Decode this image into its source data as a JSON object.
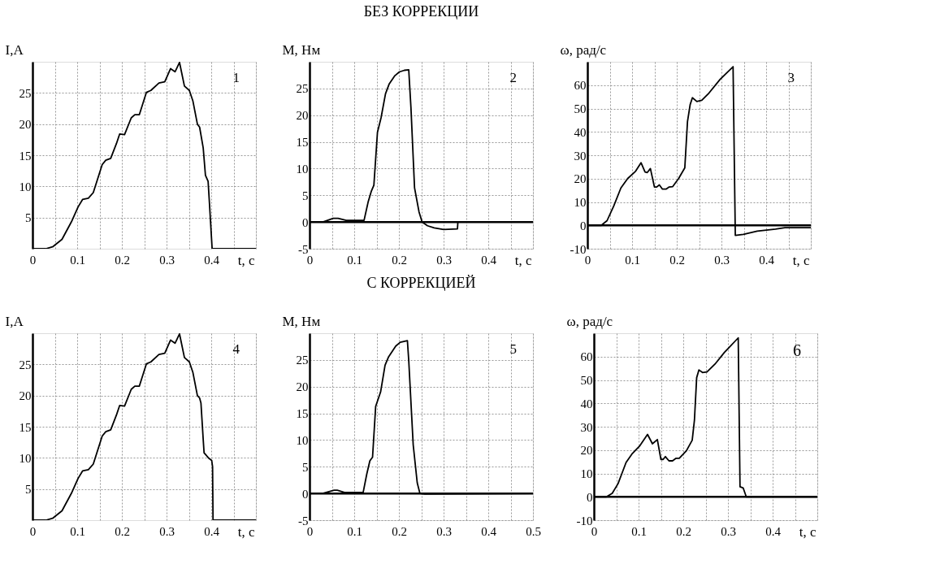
{
  "chart_data": [
    {
      "type": "line",
      "xlabel": "t, c",
      "ylabel": "I,A",
      "annotations": [
        "1"
      ],
      "grid": true,
      "xlim": [
        0,
        0.5
      ],
      "ylim": [
        0,
        30
      ],
      "xticks": [
        0,
        {
          "value": 0.05,
          "label": null
        },
        0.1,
        {
          "value": 0.15,
          "label": null
        },
        0.2,
        {
          "value": 0.25,
          "label": null
        },
        0.3,
        {
          "value": 0.35,
          "label": null
        },
        0.4,
        {
          "value": 0.45,
          "label": null
        },
        {
          "value": 0.5,
          "label": null
        }
      ],
      "yticks": [
        5,
        10,
        15,
        20,
        25
      ],
      "series": [
        {
          "color": "#000000",
          "x": [
            0,
            0.03,
            0.045,
            0.066,
            0.087,
            0.102,
            0.112,
            0.125,
            0.136,
            0.156,
            0.164,
            0.175,
            0.188,
            0.195,
            0.206,
            0.221,
            0.229,
            0.239,
            0.255,
            0.265,
            0.283,
            0.296,
            0.309,
            0.319,
            0.329,
            0.34,
            0.351,
            0.359,
            0.369,
            0.374,
            0.382,
            0.387,
            0.393,
            0.396,
            0.402,
            0.5
          ],
          "values": [
            0,
            0,
            0.3,
            1.5,
            4.3,
            6.7,
            7.9,
            8.1,
            9,
            13.5,
            14.2,
            14.5,
            16.9,
            18.4,
            18.3,
            21,
            21.5,
            21.5,
            25.1,
            25.4,
            26.6,
            26.8,
            28.9,
            28.4,
            29.9,
            26.1,
            25.4,
            23.7,
            20,
            19.5,
            16.2,
            11.8,
            10.8,
            7.3,
            0,
            0
          ]
        }
      ]
    },
    {
      "type": "line",
      "title": "БЕЗ КОРРЕКЦИИ",
      "xlabel": "t, c",
      "ylabel": "M, Нм",
      "annotations": [
        "2"
      ],
      "grid": true,
      "xlim": [
        0,
        0.5
      ],
      "ylim": [
        -5,
        30
      ],
      "xticks": [
        0,
        {
          "value": 0.05,
          "label": null
        },
        0.1,
        {
          "value": 0.15,
          "label": null
        },
        0.2,
        {
          "value": 0.25,
          "label": null
        },
        0.3,
        {
          "value": 0.35,
          "label": null
        },
        0.4,
        {
          "value": 0.45,
          "label": null
        },
        {
          "value": 0.5,
          "label": null
        }
      ],
      "yticks": [
        -5,
        0,
        5,
        10,
        15,
        20,
        25
      ],
      "ref_lines": [
        {
          "axis": "y",
          "value": 0
        }
      ],
      "series": [
        {
          "color": "#000000",
          "x": [
            0,
            0.03,
            0.053,
            0.064,
            0.082,
            0.122,
            0.131,
            0.138,
            0.144,
            0.152,
            0.16,
            0.17,
            0.178,
            0.191,
            0.201,
            0.212,
            0.222,
            0.227,
            0.235,
            0.245,
            0.252,
            0.264,
            0.279,
            0.3,
            0.331,
            0.332,
            0.5
          ],
          "values": [
            0,
            0,
            0.7,
            0.7,
            0.3,
            0.3,
            3.7,
            5.7,
            6.9,
            16.8,
            19.5,
            24,
            25.8,
            27.4,
            28.1,
            28.4,
            28.5,
            21.3,
            6.4,
            1.9,
            0,
            -0.7,
            -1.1,
            -1.4,
            -1.3,
            0,
            0
          ]
        }
      ]
    },
    {
      "type": "line",
      "xlabel": "t, c",
      "ylabel": "ω, рад/с",
      "annotations": [
        "3"
      ],
      "grid": true,
      "xlim": [
        0,
        0.5
      ],
      "ylim": [
        -10,
        70
      ],
      "xticks": [
        0,
        {
          "value": 0.05,
          "label": null
        },
        0.1,
        {
          "value": 0.15,
          "label": null
        },
        0.2,
        {
          "value": 0.25,
          "label": null
        },
        0.3,
        {
          "value": 0.35,
          "label": null
        },
        0.4,
        {
          "value": 0.45,
          "label": null
        },
        {
          "value": 0.5,
          "label": null
        }
      ],
      "yticks": [
        -10,
        0,
        10,
        20,
        30,
        40,
        50,
        60
      ],
      "ref_lines": [
        {
          "axis": "y",
          "value": 0
        }
      ],
      "series": [
        {
          "color": "#000000",
          "x": [
            0,
            0.031,
            0.044,
            0.059,
            0.075,
            0.09,
            0.108,
            0.12,
            0.129,
            0.134,
            0.141,
            0.15,
            0.155,
            0.161,
            0.168,
            0.176,
            0.183,
            0.191,
            0.204,
            0.218,
            0.224,
            0.23,
            0.235,
            0.245,
            0.256,
            0.272,
            0.297,
            0.326,
            0.331,
            0.349,
            0.38,
            0.421,
            0.442,
            0.5
          ],
          "values": [
            0,
            0,
            2,
            8.3,
            16,
            20,
            23.2,
            26.8,
            22.8,
            22.6,
            24.3,
            16.4,
            16.4,
            17.3,
            15.5,
            15.5,
            16.4,
            16.6,
            20,
            24.6,
            44.4,
            51.7,
            54.6,
            53,
            53.5,
            56.6,
            62.5,
            67.9,
            -4.3,
            -3.9,
            -2.5,
            -1.6,
            -1,
            -1
          ]
        }
      ]
    },
    {
      "type": "line",
      "xlabel": "t, c",
      "ylabel": "I,A",
      "annotations": [
        "4"
      ],
      "grid": true,
      "xlim": [
        0,
        0.5
      ],
      "ylim": [
        0,
        30
      ],
      "xticks": [
        0,
        {
          "value": 0.05,
          "label": null
        },
        0.1,
        {
          "value": 0.15,
          "label": null
        },
        0.2,
        {
          "value": 0.25,
          "label": null
        },
        0.3,
        {
          "value": 0.35,
          "label": null
        },
        0.4,
        {
          "value": 0.45,
          "label": null
        },
        {
          "value": 0.5,
          "label": null
        }
      ],
      "yticks": [
        5,
        10,
        15,
        20,
        25
      ],
      "series": [
        {
          "color": "#000000",
          "x": [
            0,
            0.03,
            0.045,
            0.066,
            0.087,
            0.102,
            0.112,
            0.125,
            0.136,
            0.156,
            0.164,
            0.175,
            0.188,
            0.195,
            0.206,
            0.221,
            0.229,
            0.239,
            0.255,
            0.265,
            0.283,
            0.296,
            0.309,
            0.319,
            0.329,
            0.34,
            0.351,
            0.359,
            0.369,
            0.374,
            0.377,
            0.382,
            0.384,
            0.395,
            0.401,
            0.403,
            0.404,
            0.5
          ],
          "values": [
            0,
            0,
            0.3,
            1.5,
            4.3,
            6.7,
            7.9,
            8.1,
            9,
            13.5,
            14.2,
            14.5,
            16.9,
            18.4,
            18.3,
            21,
            21.5,
            21.5,
            25.1,
            25.4,
            26.6,
            26.8,
            28.9,
            28.4,
            29.9,
            26.1,
            25.4,
            23.7,
            20,
            19.6,
            18.8,
            13,
            10.8,
            9.9,
            9.6,
            8.6,
            0,
            0
          ]
        }
      ]
    },
    {
      "type": "line",
      "title": "С КОРРЕКЦИЕЙ",
      "ylabel": "M, Нм",
      "annotations": [
        "5"
      ],
      "grid": true,
      "xlim": [
        0,
        0.5
      ],
      "ylim": [
        -5,
        30
      ],
      "xticks": [
        0,
        {
          "value": 0.05,
          "label": null
        },
        0.1,
        {
          "value": 0.15,
          "label": null
        },
        0.2,
        {
          "value": 0.25,
          "label": null
        },
        0.3,
        {
          "value": 0.35,
          "label": null
        },
        0.4,
        {
          "value": 0.45,
          "label": null
        },
        0.5
      ],
      "yticks": [
        -5,
        0,
        5,
        10,
        15,
        20,
        25
      ],
      "ref_lines": [
        {
          "axis": "y",
          "value": 0
        }
      ],
      "series": [
        {
          "color": "#000000",
          "x": [
            0,
            0.029,
            0.055,
            0.062,
            0.078,
            0.12,
            0.128,
            0.135,
            0.141,
            0.148,
            0.159,
            0.169,
            0.177,
            0.193,
            0.203,
            0.219,
            0.222,
            0.232,
            0.241,
            0.247,
            0.258,
            0.5
          ],
          "values": [
            0,
            0,
            0.6,
            0.6,
            0.2,
            0.2,
            3.6,
            6.1,
            6.8,
            16.3,
            19,
            24,
            25.6,
            27.6,
            28.3,
            28.6,
            24.9,
            9.1,
            2,
            0,
            -0.1,
            0
          ]
        }
      ]
    },
    {
      "type": "line",
      "xlabel": "t, c",
      "ylabel": "ω, рад/с",
      "annotations": [
        "6"
      ],
      "grid": true,
      "xlim": [
        0,
        0.5
      ],
      "ylim": [
        -10,
        70
      ],
      "xticks": [
        0,
        {
          "value": 0.05,
          "label": null
        },
        0.1,
        {
          "value": 0.15,
          "label": null
        },
        0.2,
        {
          "value": 0.25,
          "label": null
        },
        0.3,
        {
          "value": 0.35,
          "label": null
        },
        0.4,
        {
          "value": 0.45,
          "label": null
        },
        {
          "value": 0.5,
          "label": null
        }
      ],
      "yticks": [
        -10,
        0,
        10,
        20,
        30,
        40,
        50,
        60
      ],
      "ref_lines": [
        {
          "axis": "y",
          "value": 0
        }
      ],
      "series": [
        {
          "color": "#000000",
          "x": [
            0,
            0.028,
            0.041,
            0.054,
            0.072,
            0.085,
            0.103,
            0.12,
            0.131,
            0.142,
            0.15,
            0.155,
            0.16,
            0.168,
            0.176,
            0.184,
            0.191,
            0.207,
            0.22,
            0.225,
            0.23,
            0.235,
            0.243,
            0.253,
            0.271,
            0.292,
            0.323,
            0.327,
            0.334,
            0.341,
            0.5
          ],
          "values": [
            0,
            0,
            1.5,
            5.6,
            14.7,
            18.3,
            21.9,
            26.7,
            22.7,
            24.5,
            16,
            16,
            17.2,
            15.4,
            15.4,
            16.5,
            16.5,
            19.7,
            24.2,
            32.8,
            51,
            54.3,
            53.2,
            53.4,
            56.8,
            61.8,
            68,
            4.3,
            3.8,
            0,
            0
          ]
        }
      ]
    }
  ]
}
